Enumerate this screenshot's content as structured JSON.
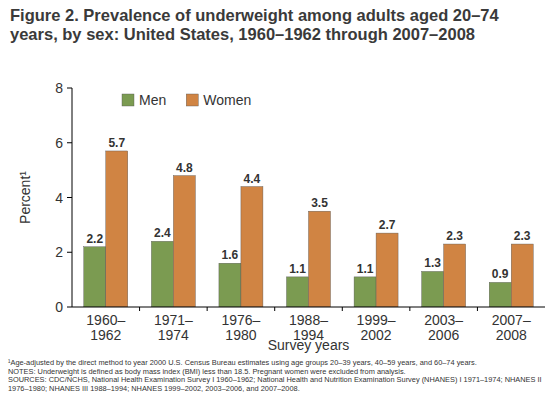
{
  "chart_data": {
    "type": "bar",
    "title": "Figure 2. Prevalence of underweight among adults aged 20–74 years, by sex: United States, 1960–1962 through 2007–2008",
    "x_label": "Survey years",
    "y_label": "Percent¹",
    "categories": [
      "1960–1962",
      "1971–1974",
      "1976–1980",
      "1988–1994",
      "1999–2002",
      "2003–2006",
      "2007–2008"
    ],
    "series": [
      {
        "name": "Men",
        "color": "#7b9b51",
        "values": [
          2.2,
          2.4,
          1.6,
          1.1,
          1.1,
          1.3,
          0.9
        ]
      },
      {
        "name": "Women",
        "color": "#d08443",
        "values": [
          5.7,
          4.8,
          4.4,
          3.5,
          2.7,
          2.3,
          2.3
        ]
      }
    ],
    "ylim": [
      0,
      8
    ],
    "yticks": [
      0,
      2,
      4,
      6,
      8
    ],
    "grid": false,
    "legend": "upper left",
    "data_labels": true,
    "notes": [
      "¹Age-adjusted by the direct method to year 2000 U.S. Census Bureau estimates using age groups 20–39 years, 40–59 years, and 60–74 years.",
      "NOTES: Underweight is defined as body mass index (BMI) less than 18.5. Pregnant women were excluded from analysis.",
      "SOURCES: CDC/NCHS, National Health Examination Survey I 1960–1962; National Health and Nutrition Examination Survey (NHANES) I 1971–1974; NHANES II 1976–1980; NHANES III 1988–1994; NHANES 1999–2002, 2003–2006, and 2007–2008."
    ]
  }
}
